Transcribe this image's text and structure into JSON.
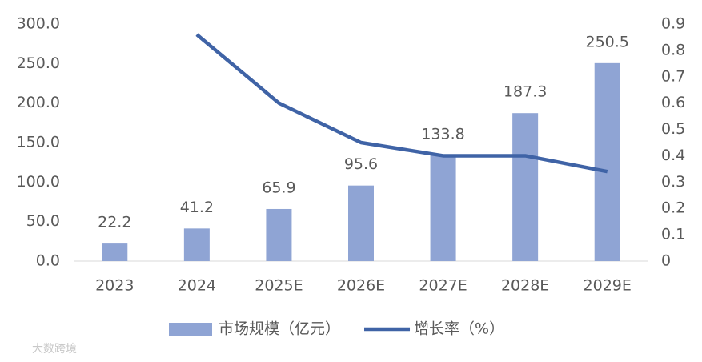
{
  "chart_data": {
    "type": "bar-line",
    "categories": [
      "2023",
      "2024",
      "2025E",
      "2026E",
      "2027E",
      "2028E",
      "2029E"
    ],
    "series": [
      {
        "name": "市场规模（亿元）",
        "type": "bar",
        "color": "#8fa4d4",
        "values": [
          22.2,
          41.2,
          65.9,
          95.6,
          133.8,
          187.3,
          250.5
        ]
      },
      {
        "name": "增长率（%）",
        "type": "line",
        "axis": "y2",
        "color": "#3f63a6",
        "values": [
          null,
          0.86,
          0.6,
          0.45,
          0.4,
          0.4,
          0.34
        ]
      }
    ],
    "ylim": [
      0,
      300
    ],
    "yticks": [
      {
        "value": 0,
        "label": "0.0"
      },
      {
        "value": 50,
        "label": "50.0"
      },
      {
        "value": 100,
        "label": "100.0"
      },
      {
        "value": 150,
        "label": "150.0"
      },
      {
        "value": 200,
        "label": "200.0"
      },
      {
        "value": 250,
        "label": "250.0"
      },
      {
        "value": 300,
        "label": "300.0"
      }
    ],
    "y2lim": [
      0,
      0.9
    ],
    "y2ticks": [
      0,
      0.1,
      0.2,
      0.3,
      0.4,
      0.5,
      0.6,
      0.7,
      0.8,
      0.9
    ],
    "grid": false,
    "legend": "bottom",
    "watermark": "大数跨境"
  }
}
